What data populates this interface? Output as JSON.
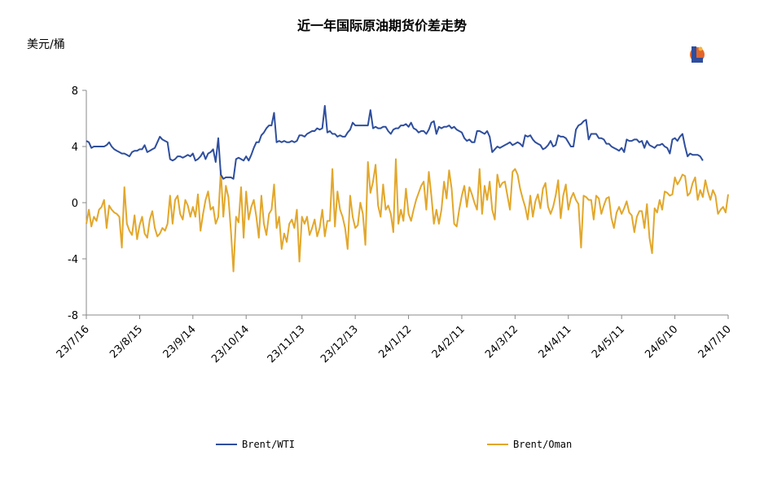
{
  "chart_data": {
    "type": "line",
    "title": "近一年国际原油期货价差走势",
    "ylabel": "美元/桶",
    "ylim": [
      -8,
      8
    ],
    "yticks": [
      -8,
      -4,
      0,
      4,
      8
    ],
    "xlim": [
      0,
      253
    ],
    "xticks": [
      {
        "label": "23/7/16",
        "x": 0
      },
      {
        "label": "23/8/15",
        "x": 21
      },
      {
        "label": "23/9/14",
        "x": 42
      },
      {
        "label": "23/10/14",
        "x": 63
      },
      {
        "label": "23/11/13",
        "x": 85
      },
      {
        "label": "23/12/13",
        "x": 106
      },
      {
        "label": "24/1/12",
        "x": 127
      },
      {
        "label": "24/2/11",
        "x": 148
      },
      {
        "label": "24/3/12",
        "x": 169
      },
      {
        "label": "24/4/11",
        "x": 190
      },
      {
        "label": "24/5/11",
        "x": 211
      },
      {
        "label": "24/6/10",
        "x": 232
      },
      {
        "label": "24/7/10",
        "x": 253
      }
    ],
    "legend_position": "bottom",
    "grid": false,
    "colors": {
      "brent_wti": "#2e4e9e",
      "brent_oman": "#e2a72b"
    },
    "series": [
      {
        "name": "Brent/WTI",
        "values": [
          4.4,
          4.3,
          3.9,
          4.0,
          4.0,
          4.0,
          4.0,
          4.0,
          4.1,
          4.3,
          4.0,
          3.8,
          3.7,
          3.6,
          3.5,
          3.5,
          3.4,
          3.3,
          3.6,
          3.7,
          3.7,
          3.8,
          3.8,
          4.1,
          3.6,
          3.7,
          3.8,
          3.9,
          4.3,
          4.7,
          4.5,
          4.4,
          4.3,
          3.1,
          3.0,
          3.1,
          3.3,
          3.3,
          3.2,
          3.3,
          3.4,
          3.3,
          3.5,
          3.0,
          3.1,
          3.3,
          3.6,
          3.1,
          3.5,
          3.6,
          3.8,
          2.9,
          4.6,
          2.0,
          1.7,
          1.8,
          1.8,
          1.8,
          1.7,
          3.1,
          3.2,
          3.1,
          3.0,
          3.3,
          3.0,
          3.4,
          3.9,
          4.3,
          4.3,
          4.8,
          5.0,
          5.3,
          5.5,
          5.5,
          6.4,
          4.3,
          4.4,
          4.3,
          4.4,
          4.3,
          4.3,
          4.4,
          4.3,
          4.4,
          4.8,
          4.8,
          4.7,
          4.9,
          5.0,
          5.1,
          5.1,
          5.3,
          5.2,
          5.3,
          6.9,
          5.0,
          5.1,
          4.9,
          4.9,
          4.7,
          4.8,
          4.7,
          4.7,
          5.0,
          5.2,
          5.7,
          5.5,
          5.5,
          5.5,
          5.5,
          5.5,
          5.5,
          6.6,
          5.3,
          5.4,
          5.3,
          5.3,
          5.4,
          5.4,
          5.1,
          4.9,
          5.2,
          5.3,
          5.3,
          5.5,
          5.5,
          5.6,
          5.4,
          5.7,
          5.3,
          5.2,
          5.0,
          5.1,
          5.1,
          4.9,
          5.2,
          5.7,
          5.8,
          4.9,
          5.4,
          5.3,
          5.4,
          5.4,
          5.5,
          5.3,
          5.4,
          5.2,
          5.1,
          5.0,
          4.6,
          4.4,
          4.5,
          4.3,
          4.3,
          5.1,
          5.1,
          5.0,
          4.9,
          5.1,
          4.7,
          3.6,
          3.8,
          4.0,
          3.9,
          4.0,
          4.1,
          4.2,
          4.3,
          4.1,
          4.2,
          4.3,
          4.2,
          4.0,
          4.8,
          4.7,
          4.8,
          4.5,
          4.3,
          4.2,
          4.1,
          3.8,
          3.9,
          4.1,
          4.4,
          4.0,
          4.1,
          4.8,
          4.7,
          4.7,
          4.6,
          4.3,
          4.0,
          4.0,
          5.2,
          5.5,
          5.6,
          5.8,
          5.9,
          4.5,
          4.9,
          4.9,
          4.9,
          4.6,
          4.6,
          4.5,
          4.2,
          4.2,
          4.0,
          3.9,
          3.8,
          3.7,
          3.9,
          3.6,
          4.5,
          4.4,
          4.4,
          4.5,
          4.5,
          4.3,
          4.4,
          3.9,
          4.4,
          4.1,
          4.0,
          3.9,
          4.1,
          4.1,
          4.2,
          4.0,
          3.9,
          3.5,
          4.5,
          4.6,
          4.4,
          4.7,
          4.9,
          4.0,
          3.3,
          3.5,
          3.4,
          3.4,
          3.4,
          3.3,
          3.0
        ]
      },
      {
        "name": "Brent/Oman",
        "values": [
          -1.5,
          -0.5,
          -1.7,
          -1.0,
          -1.3,
          -0.5,
          -0.3,
          0.2,
          -1.8,
          -0.2,
          -0.5,
          -0.7,
          -0.8,
          -1.0,
          -3.2,
          1.1,
          -1.5,
          -2.0,
          -2.3,
          -0.9,
          -2.6,
          -1.6,
          -1.0,
          -2.2,
          -2.5,
          -1.2,
          -0.6,
          -1.8,
          -2.4,
          -2.2,
          -1.8,
          -2.0,
          -1.5,
          0.5,
          -1.5,
          0.2,
          0.5,
          -0.8,
          -1.2,
          0.2,
          -0.2,
          -1.0,
          -0.3,
          -1.0,
          0.6,
          -2.0,
          -0.8,
          0.2,
          0.8,
          -0.5,
          -0.3,
          -1.5,
          -1.0,
          2.3,
          -1.0,
          1.2,
          0.4,
          -2.0,
          -4.9,
          -1.0,
          -1.4,
          1.1,
          -2.5,
          0.8,
          -1.2,
          -0.3,
          0.2,
          -1.0,
          -2.5,
          0.5,
          -1.5,
          -2.3,
          -0.8,
          -0.5,
          1.3,
          -1.8,
          -1.0,
          -3.3,
          -2.2,
          -2.8,
          -1.5,
          -1.2,
          -1.8,
          -0.5,
          -4.2,
          -1.0,
          -1.5,
          -1.0,
          -2.3,
          -1.8,
          -1.2,
          -2.4,
          -1.8,
          -0.5,
          -2.4,
          -1.3,
          -1.3,
          2.4,
          -1.7,
          0.8,
          -0.5,
          -1.0,
          -1.8,
          -3.3,
          0.5,
          -1.0,
          -1.8,
          -1.6,
          0.0,
          -0.8,
          -3.0,
          2.9,
          0.7,
          1.5,
          2.7,
          -0.2,
          -1.0,
          1.3,
          -0.5,
          -0.2,
          -0.8,
          -2.1,
          3.1,
          -1.5,
          -0.5,
          -1.3,
          1.0,
          -0.8,
          -1.3,
          -0.5,
          0.2,
          0.7,
          1.2,
          1.5,
          -0.5,
          2.2,
          0.5,
          -1.5,
          -0.5,
          -1.5,
          -0.5,
          1.5,
          0.3,
          2.3,
          1.0,
          -1.5,
          -1.7,
          -0.5,
          0.5,
          1.2,
          -0.3,
          1.1,
          0.6,
          0.0,
          -0.5,
          2.4,
          -0.8,
          1.2,
          0.2,
          1.5,
          -0.5,
          -1.2,
          2.0,
          1.1,
          1.4,
          1.5,
          0.5,
          -0.5,
          2.2,
          2.4,
          2.0,
          1.0,
          0.3,
          -0.3,
          -1.2,
          0.5,
          -1.0,
          0.1,
          0.6,
          -0.4,
          1.0,
          1.4,
          -0.3,
          -0.8,
          -0.3,
          0.5,
          1.6,
          -1.1,
          0.5,
          1.3,
          -0.5,
          0.3,
          0.7,
          0.2,
          -0.1,
          -3.2,
          0.5,
          0.4,
          0.2,
          0.2,
          -1.2,
          0.5,
          0.3,
          -0.8,
          -0.2,
          0.3,
          0.4,
          -1.1,
          -1.8,
          -0.7,
          -0.3,
          -0.8,
          -0.4,
          0.1,
          -0.7,
          -0.9,
          -2.1,
          -1.0,
          -0.6,
          -0.6,
          -1.8,
          -0.1,
          -2.5,
          -3.6,
          -0.4,
          -0.7,
          0.2,
          -0.5,
          0.8,
          0.7,
          0.5,
          0.6,
          1.8,
          1.3,
          1.6,
          2.0,
          1.9,
          0.5,
          0.7,
          1.4,
          1.8,
          0.2,
          0.9,
          0.4,
          1.6,
          0.8,
          0.2,
          0.9,
          0.5,
          -0.8,
          -0.5,
          -0.3,
          -0.7,
          0.6
        ]
      }
    ]
  }
}
